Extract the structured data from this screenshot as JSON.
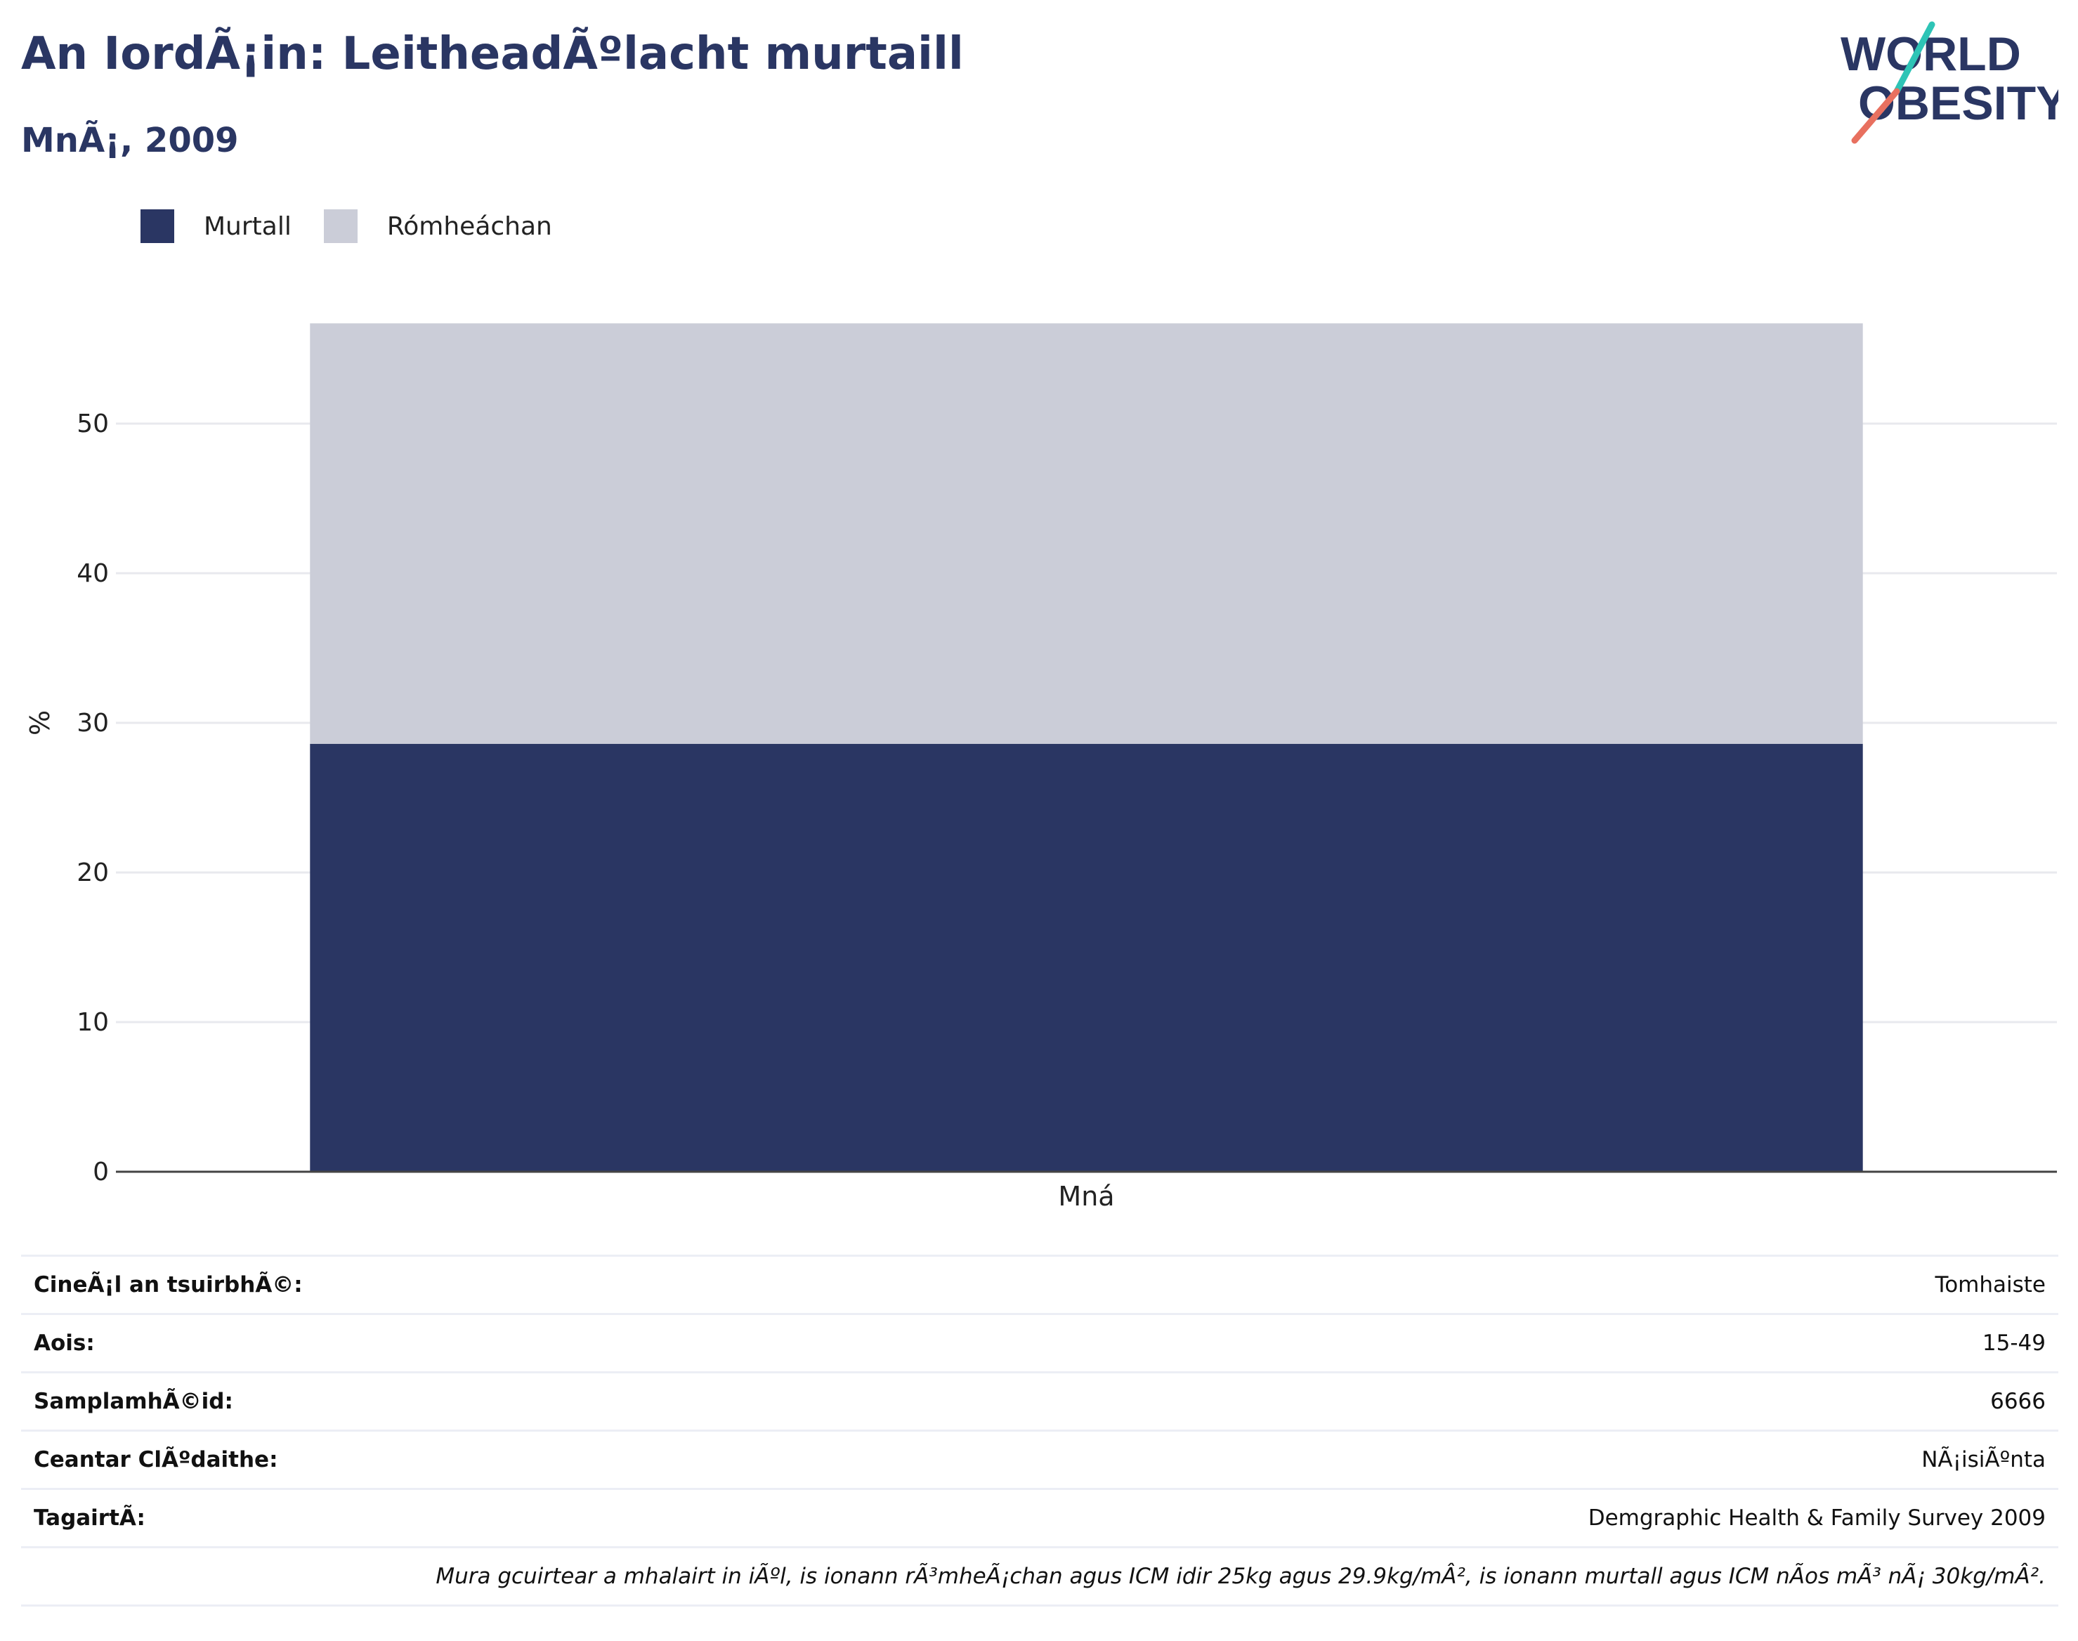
{
  "header": {
    "title": "An IordÃ¡in: LeitheadÃºlacht murtaill",
    "subtitle": "MnÃ¡, 2009"
  },
  "logo": {
    "line1": "WORLD",
    "line2": "OBESITY"
  },
  "legend": [
    {
      "label": "Murtall",
      "color": "#2a3663"
    },
    {
      "label": "Rómheáchan",
      "color": "#cbcdd8"
    }
  ],
  "chart_data": {
    "type": "bar",
    "stacked": true,
    "categories": [
      "Mná"
    ],
    "series": [
      {
        "name": "Murtall",
        "values": [
          28.6
        ],
        "color": "#2a3663"
      },
      {
        "name": "Rómheáchan",
        "values": [
          28.1
        ],
        "color": "#cbcdd8"
      }
    ],
    "ylabel": "%",
    "ylim": [
      0,
      60
    ],
    "yticks": [
      0,
      10,
      20,
      30,
      40,
      50
    ],
    "grid": true,
    "legend_position": "top-left"
  },
  "info_rows": [
    {
      "key": "CineÃ¡l an tsuirbhÃ©:",
      "value": "Tomhaiste"
    },
    {
      "key": "Aois:",
      "value": "15-49"
    },
    {
      "key": "SamplamhÃ©id:",
      "value": "6666"
    },
    {
      "key": "Ceantar ClÃºdaithe:",
      "value": "NÃ¡isiÃºnta"
    },
    {
      "key": "TagairtÃ:",
      "value": "Demgraphic Health & Family Survey 2009"
    }
  ],
  "footnote": "Mura gcuirtear a mhalairt in iÃºl, is ionann rÃ³mheÃ¡chan agus ICM idir 25kg agus 29.9kg/mÂ², is ionann murtall agus ICM nÃos mÃ³ nÃ¡ 30kg/mÂ²."
}
